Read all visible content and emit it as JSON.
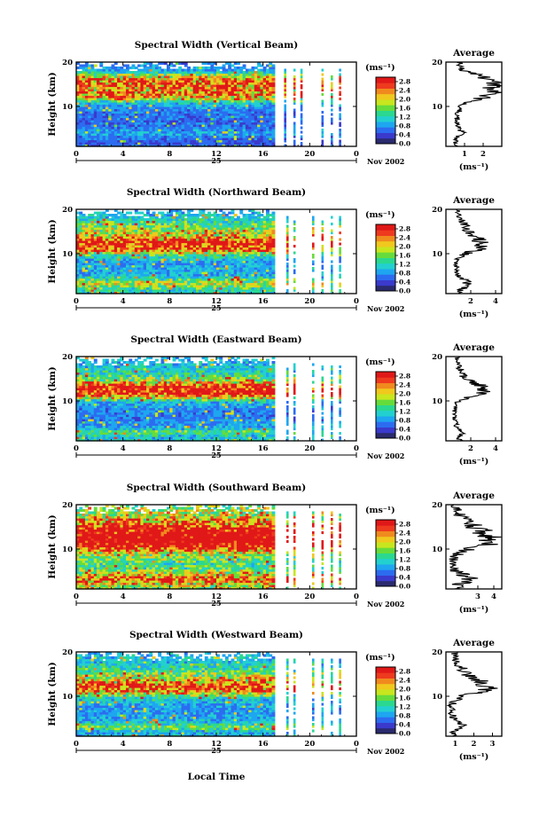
{
  "figure": {
    "x_label": "Local Time",
    "day_label": "25",
    "date_label": "Nov 2002",
    "colorbar_unit_label": "(ms⁻¹)",
    "avg_title": "Average",
    "avg_xunit_label": "(ms⁻¹)"
  },
  "colors": {
    "colormap": [
      "#2a2a6e",
      "#3a3acc",
      "#2c6cf0",
      "#1ea6f0",
      "#23d0d0",
      "#2ad890",
      "#66dc3c",
      "#c8e61e",
      "#f0c81e",
      "#f08a1e",
      "#ee3a1e",
      "#e01818"
    ],
    "background": "#ffffff",
    "axes": "#000000"
  },
  "chart_data": [
    {
      "type": "heatmap",
      "title": "Spectral Width (Vertical Beam)",
      "ylabel": "Height (km)",
      "xlabel": "Local Time",
      "x_range": [
        0,
        24
      ],
      "y_range": [
        1,
        20
      ],
      "x_ticks": [
        "0",
        "4",
        "8",
        "12",
        "16",
        "20",
        "0"
      ],
      "y_ticks": [
        "10",
        "20"
      ],
      "colorbar_ticks": [
        "2.8",
        "2.4",
        "2.0",
        "1.6",
        "1.2",
        "0.8",
        "0.4",
        "0.0"
      ],
      "colorbar_range": [
        0,
        3.0
      ],
      "regions": {
        "continuous_until_h": 17,
        "sparse_columns_h": [
          17.8,
          18.6,
          19.2,
          21.0,
          21.8,
          22.5
        ]
      },
      "profile_knots": {
        "heights_km": [
          1,
          2,
          3,
          4,
          5,
          6,
          7,
          8,
          9,
          10,
          11,
          12,
          13,
          14,
          15,
          16,
          17,
          18,
          19,
          20
        ],
        "width_ms": [
          0.6,
          0.5,
          0.6,
          0.9,
          0.7,
          0.6,
          0.6,
          0.6,
          0.7,
          0.8,
          1.1,
          2.1,
          2.5,
          2.2,
          2.7,
          2.4,
          1.8,
          0.9,
          0.8,
          0.7
        ]
      },
      "average": {
        "x_ticks": [
          "1",
          "2"
        ],
        "x_range": [
          0,
          3.0
        ],
        "y_ticks": [
          "10",
          "20"
        ],
        "y_range": [
          1,
          20
        ]
      }
    },
    {
      "type": "heatmap",
      "title": "Spectral Width (Northward Beam)",
      "ylabel": "Height (km)",
      "xlabel": "Local Time",
      "x_range": [
        0,
        24
      ],
      "y_range": [
        1,
        20
      ],
      "x_ticks": [
        "0",
        "4",
        "8",
        "12",
        "16",
        "20",
        "0"
      ],
      "y_ticks": [
        "10",
        "20"
      ],
      "colorbar_ticks": [
        "2.8",
        "2.4",
        "2.0",
        "1.6",
        "1.2",
        "0.8",
        "0.4",
        "0.0"
      ],
      "colorbar_range": [
        0,
        3.0
      ],
      "regions": {
        "continuous_until_h": 17,
        "sparse_columns_h": [
          18.0,
          18.6,
          20.2,
          21.0,
          21.8,
          22.5
        ]
      },
      "profile_knots": {
        "heights_km": [
          1,
          2,
          3,
          4,
          5,
          6,
          7,
          8,
          9,
          10,
          11,
          12,
          13,
          14,
          15,
          16,
          17,
          18,
          19,
          20
        ],
        "width_ms": [
          1.0,
          1.3,
          1.8,
          1.6,
          1.0,
          0.9,
          0.9,
          0.8,
          1.0,
          1.6,
          2.6,
          3.0,
          2.7,
          2.2,
          1.8,
          1.6,
          1.4,
          1.1,
          1.0,
          0.9
        ]
      },
      "average": {
        "x_ticks": [
          "2",
          "4"
        ],
        "x_range": [
          0,
          4.5
        ],
        "y_ticks": [
          "10",
          "20"
        ],
        "y_range": [
          1,
          20
        ]
      }
    },
    {
      "type": "heatmap",
      "title": "Spectral Width (Eastward Beam)",
      "ylabel": "Height (km)",
      "xlabel": "Local Time",
      "x_range": [
        0,
        24
      ],
      "y_range": [
        1,
        20
      ],
      "x_ticks": [
        "0",
        "4",
        "8",
        "12",
        "16",
        "20",
        "0"
      ],
      "y_ticks": [
        "10",
        "20"
      ],
      "colorbar_ticks": [
        "2.8",
        "2.4",
        "2.0",
        "1.6",
        "1.2",
        "0.8",
        "0.4",
        "0.0"
      ],
      "colorbar_range": [
        0,
        3.0
      ],
      "regions": {
        "continuous_until_h": 17,
        "sparse_columns_h": [
          18.0,
          18.6,
          20.2,
          21.0,
          21.8,
          22.5
        ]
      },
      "profile_knots": {
        "heights_km": [
          1,
          2,
          3,
          4,
          5,
          6,
          7,
          8,
          9,
          10,
          11,
          12,
          13,
          14,
          15,
          16,
          17,
          18,
          19,
          20
        ],
        "width_ms": [
          1.2,
          1.0,
          1.5,
          0.9,
          0.8,
          0.7,
          0.7,
          0.7,
          0.8,
          1.0,
          2.2,
          3.0,
          3.2,
          2.2,
          1.6,
          1.3,
          1.2,
          1.0,
          0.9,
          0.9
        ]
      },
      "average": {
        "x_ticks": [
          "2",
          "4"
        ],
        "x_range": [
          0,
          4.5
        ],
        "y_ticks": [
          "10",
          "20"
        ],
        "y_range": [
          1,
          20
        ]
      }
    },
    {
      "type": "heatmap",
      "title": "Spectral Width (Southward Beam)",
      "ylabel": "Height (km)",
      "xlabel": "Local Time",
      "x_range": [
        0,
        24
      ],
      "y_range": [
        1,
        20
      ],
      "x_ticks": [
        "0",
        "4",
        "8",
        "12",
        "16",
        "20",
        "0"
      ],
      "y_ticks": [
        "10",
        "20"
      ],
      "colorbar_ticks": [
        "2.8",
        "2.4",
        "2.0",
        "1.6",
        "1.2",
        "0.8",
        "0.4",
        "0.0"
      ],
      "colorbar_range": [
        0,
        3.0
      ],
      "regions": {
        "continuous_until_h": 17,
        "sparse_columns_h": [
          18.0,
          18.6,
          20.2,
          21.0,
          21.8,
          22.5
        ]
      },
      "profile_knots": {
        "heights_km": [
          1,
          2,
          3,
          4,
          5,
          6,
          7,
          8,
          9,
          10,
          11,
          12,
          13,
          14,
          15,
          16,
          17,
          18,
          19,
          20
        ],
        "width_ms": [
          1.6,
          1.8,
          2.6,
          2.2,
          1.6,
          1.4,
          1.4,
          1.5,
          1.8,
          2.4,
          3.4,
          3.8,
          3.6,
          3.3,
          2.8,
          2.4,
          2.1,
          1.8,
          1.7,
          1.6
        ]
      },
      "average": {
        "x_ticks": [
          "3",
          "4"
        ],
        "x_range": [
          1.0,
          4.5
        ],
        "y_ticks": [
          "10",
          "20"
        ],
        "y_range": [
          1,
          20
        ]
      }
    },
    {
      "type": "heatmap",
      "title": "Spectral Width (Westward Beam)",
      "ylabel": "Height (km)",
      "xlabel": "Local Time",
      "x_range": [
        0,
        24
      ],
      "y_range": [
        1,
        20
      ],
      "x_ticks": [
        "0",
        "4",
        "8",
        "12",
        "16",
        "20",
        "0"
      ],
      "y_ticks": [
        "10",
        "20"
      ],
      "colorbar_ticks": [
        "2.8",
        "2.4",
        "2.0",
        "1.6",
        "1.2",
        "0.8",
        "0.4",
        "0.0"
      ],
      "colorbar_range": [
        0,
        3.0
      ],
      "regions": {
        "continuous_until_h": 17,
        "sparse_columns_h": [
          18.0,
          18.6,
          20.2,
          21.0,
          21.8,
          22.5
        ]
      },
      "profile_knots": {
        "heights_km": [
          1,
          2,
          3,
          4,
          5,
          6,
          7,
          8,
          9,
          10,
          11,
          12,
          13,
          14,
          15,
          16,
          17,
          18,
          19,
          20
        ],
        "width_ms": [
          1.0,
          0.9,
          1.6,
          1.1,
          0.9,
          0.8,
          0.8,
          0.8,
          1.0,
          1.3,
          2.2,
          2.8,
          2.4,
          2.0,
          1.6,
          1.4,
          1.2,
          1.0,
          1.0,
          0.9
        ]
      },
      "average": {
        "x_ticks": [
          "1",
          "2",
          "3"
        ],
        "x_range": [
          0.5,
          3.5
        ],
        "y_ticks": [
          "10",
          "20"
        ],
        "y_range": [
          1,
          20
        ]
      }
    }
  ]
}
